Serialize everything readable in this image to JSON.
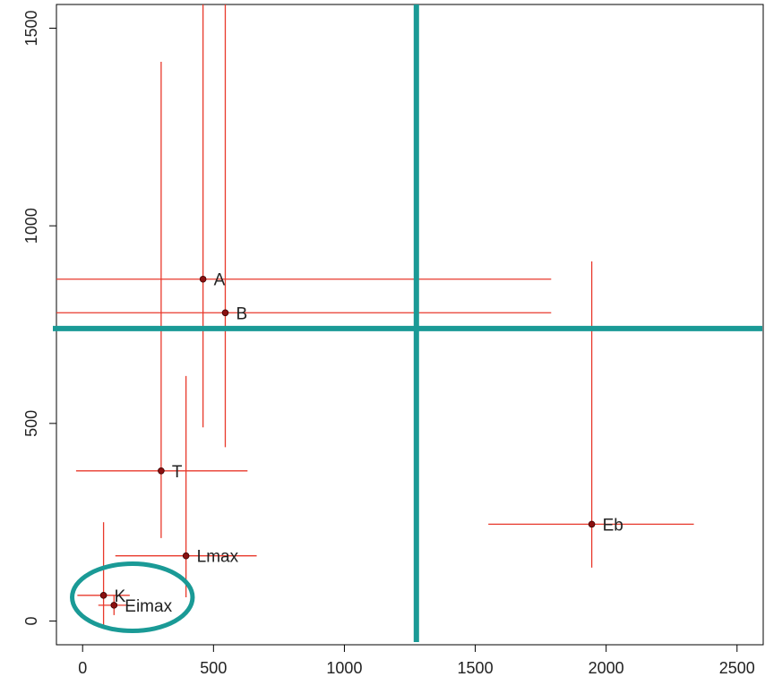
{
  "chart_data": {
    "type": "scatter",
    "title": "",
    "xlabel": "",
    "ylabel": "",
    "xlim": [
      -100,
      2600
    ],
    "ylim": [
      -60,
      1560
    ],
    "x_ticks": [
      0,
      500,
      1000,
      1500,
      2000,
      2500
    ],
    "x_tick_labels": [
      "0",
      "500",
      "1000",
      "1500",
      "2000",
      "2500"
    ],
    "y_ticks": [
      0,
      500,
      1000,
      1500
    ],
    "y_tick_labels": [
      "0",
      "500",
      "1000",
      "1500"
    ],
    "grid": false,
    "error_bar_color": "#e8392b",
    "point_color": "#8b1010",
    "points": [
      {
        "label": "A",
        "x": 460,
        "y": 865,
        "x_low": -100,
        "x_high": 1790,
        "y_low": 490,
        "y_high": 1560
      },
      {
        "label": "B",
        "x": 545,
        "y": 780,
        "x_low": -100,
        "x_high": 1790,
        "y_low": 440,
        "y_high": 1560
      },
      {
        "label": "T",
        "x": 300,
        "y": 380,
        "x_low": -25,
        "x_high": 630,
        "y_low": 210,
        "y_high": 1415
      },
      {
        "label": "Lmax",
        "x": 395,
        "y": 165,
        "x_low": 125,
        "x_high": 665,
        "y_low": 60,
        "y_high": 620
      },
      {
        "label": "K",
        "x": 80,
        "y": 65,
        "x_low": -20,
        "x_high": 180,
        "y_low": -10,
        "y_high": 250
      },
      {
        "label": "Eimax",
        "x": 120,
        "y": 40,
        "x_low": 60,
        "x_high": 175,
        "y_low": 15,
        "y_high": 65
      },
      {
        "label": "Eb",
        "x": 1945,
        "y": 245,
        "x_low": 1550,
        "x_high": 2335,
        "y_low": 135,
        "y_high": 910
      }
    ],
    "reference_lines": {
      "color": "#1a9a96",
      "vertical_x": 1275,
      "horizontal_y": 740
    },
    "highlight_ellipse": {
      "color": "#1a9a96",
      "center_x": 190,
      "center_y": 60,
      "radius_x": 230,
      "radius_y": 85
    }
  }
}
